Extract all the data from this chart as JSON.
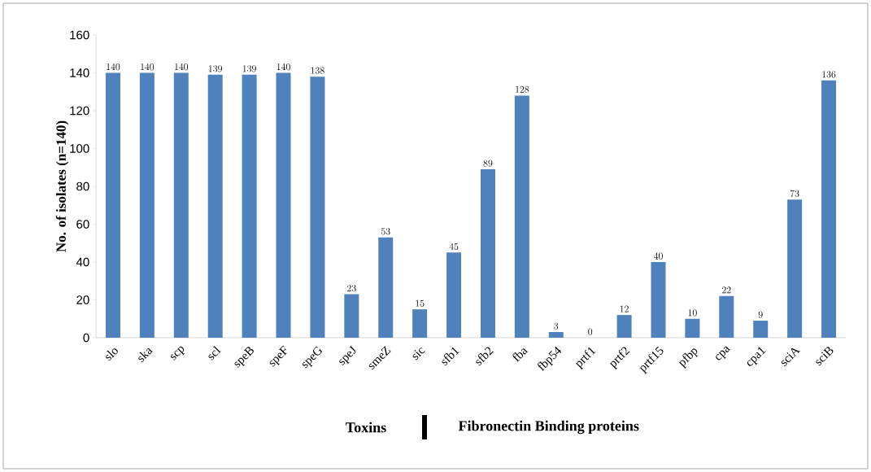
{
  "chart_data": {
    "type": "bar",
    "ylabel": "No. of isolates (n=140)",
    "categories": [
      "slo",
      "ska",
      "scp",
      "scl",
      "speB",
      "speF",
      "speG",
      "speJ",
      "smeZ",
      "sic",
      "sfb1",
      "sfb2",
      "fba",
      "fbp54",
      "prtf1",
      "prtf2",
      "prtf15",
      "pfbp",
      "cpa",
      "cpa1",
      "sciA",
      "sciB"
    ],
    "values": [
      140,
      140,
      140,
      139,
      139,
      140,
      138,
      23,
      53,
      15,
      45,
      89,
      128,
      3,
      0,
      12,
      40,
      10,
      22,
      9,
      73,
      136
    ],
    "color": "#4f81bd",
    "ylim": [
      0,
      160
    ],
    "yticks": [
      0,
      20,
      40,
      60,
      80,
      100,
      120,
      140,
      160
    ],
    "data_labels": true,
    "annotations": [
      "Toxins",
      "Fibronectin Binding proteins"
    ]
  }
}
